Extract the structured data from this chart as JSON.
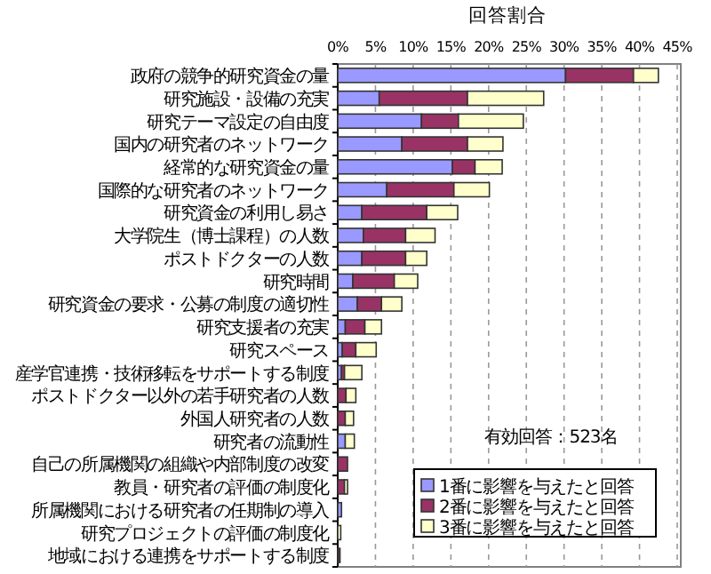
{
  "chart_data": {
    "type": "bar",
    "orientation": "horizontal",
    "stacked": true,
    "xlabel": "回答割合",
    "categories": [
      "政府の競争的研究資金の量",
      "研究施設・設備の充実",
      "研究テーマ設定の自由度",
      "国内の研究者のネットワーク",
      "経常的な研究資金の量",
      "国際的な研究者のネットワーク",
      "研究資金の利用し易さ",
      "大学院生（博士課程）の人数",
      "ポストドクターの人数",
      "研究時間",
      "研究資金の要求・公募の制度の適切性",
      "研究支援者の充実",
      "研究スペース",
      "産学官連携・技術移転をサポートする制度",
      "ポストドクター以外の若手研究者の人数",
      "外国人研究者の人数",
      "研究者の流動性",
      "自己の所属機関の組織や内部制度の改変",
      "教員・研究者の評価の制度化",
      "所属機関における研究者の任期制の導入",
      "研究プロジェクトの評価の制度化",
      "地域における連携をサポートする制度"
    ],
    "series": [
      {
        "name": "1番に影響を与えたと回答",
        "color": "#9999ff",
        "values": [
          30.2,
          5.5,
          11.1,
          8.5,
          15.2,
          6.5,
          3.2,
          3.4,
          3.2,
          2.0,
          2.6,
          1.0,
          0.6,
          0.5,
          0.0,
          0.0,
          1.0,
          0.0,
          0.0,
          0.5,
          0.0,
          0.1
        ]
      },
      {
        "name": "2番に影響を与えたと回答",
        "color": "#993366",
        "values": [
          9.0,
          11.7,
          4.9,
          8.7,
          3.0,
          8.9,
          8.6,
          5.6,
          5.8,
          5.5,
          3.2,
          2.6,
          1.8,
          0.4,
          1.1,
          1.0,
          0.0,
          1.3,
          0.9,
          0.0,
          0.0,
          0.2
        ]
      },
      {
        "name": "3番に影響を与えたと回答",
        "color": "#ffffcc",
        "values": [
          3.3,
          10.1,
          8.6,
          4.7,
          3.6,
          4.7,
          4.1,
          3.9,
          2.8,
          3.1,
          2.7,
          2.2,
          2.7,
          2.3,
          1.3,
          1.1,
          1.2,
          0.0,
          0.4,
          0.0,
          0.4,
          0.0
        ]
      }
    ],
    "xlim": [
      0,
      45
    ],
    "xticks": [
      {
        "value": 0,
        "label": "0%"
      },
      {
        "value": 5,
        "label": "5%"
      },
      {
        "value": 10,
        "label": "10%"
      },
      {
        "value": 15,
        "label": "15%"
      },
      {
        "value": 20,
        "label": "20%"
      },
      {
        "value": 25,
        "label": "25%"
      },
      {
        "value": 30,
        "label": "30%"
      },
      {
        "value": 35,
        "label": "35%"
      },
      {
        "value": 40,
        "label": "40%"
      },
      {
        "value": 45,
        "label": "45%"
      }
    ],
    "grid": "x",
    "legend": "bottom right",
    "annotations": [
      "有効回答：523名"
    ]
  }
}
